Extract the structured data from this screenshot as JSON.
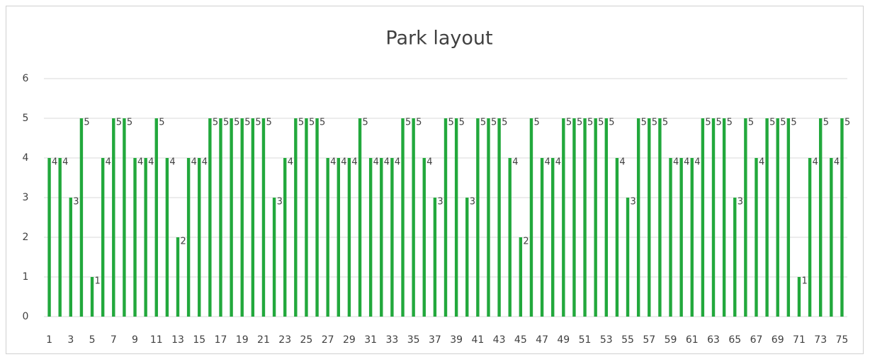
{
  "chart_data": {
    "type": "bar",
    "title": "Park layout",
    "categories": [
      1,
      null,
      3,
      null,
      5,
      null,
      7,
      null,
      9,
      null,
      11,
      null,
      13,
      null,
      15,
      null,
      17,
      null,
      19,
      null,
      21,
      null,
      23,
      null,
      25,
      null,
      27,
      null,
      29,
      null,
      31,
      null,
      33,
      null,
      35,
      null,
      37,
      null,
      39,
      null,
      41,
      null,
      43,
      null,
      45,
      null,
      47,
      null,
      49,
      null,
      51,
      null,
      53,
      null,
      55,
      null,
      57,
      null,
      59,
      null,
      61,
      null,
      63,
      null,
      65,
      null,
      67,
      null,
      69,
      null,
      71,
      null,
      73,
      null,
      75
    ],
    "values": [
      4,
      4,
      3,
      5,
      1,
      4,
      5,
      5,
      4,
      4,
      5,
      4,
      2,
      4,
      4,
      5,
      5,
      5,
      5,
      5,
      5,
      3,
      4,
      5,
      5,
      5,
      4,
      4,
      4,
      5,
      4,
      4,
      4,
      5,
      5,
      4,
      3,
      5,
      5,
      3,
      5,
      5,
      5,
      4,
      2,
      5,
      4,
      4,
      5,
      5,
      5,
      5,
      5,
      4,
      3,
      5,
      5,
      5,
      4,
      4,
      4,
      5,
      5,
      5,
      3,
      5,
      4,
      5,
      5,
      5,
      1,
      4,
      5,
      4,
      5
    ],
    "color": "#22a83c",
    "ylim": [
      0,
      6
    ],
    "yticks": [
      0,
      1,
      2,
      3,
      4,
      5,
      6
    ],
    "grid": true
  }
}
